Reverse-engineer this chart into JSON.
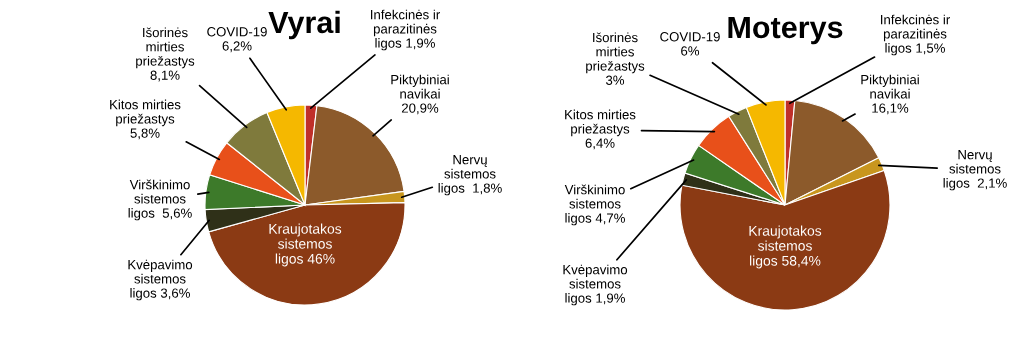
{
  "chart_data": [
    {
      "type": "pie",
      "title": "Vyrai",
      "categories": [
        "Infekcinės ir\nparazitinės\nligos 1,9%",
        "Piktybiniai\nnavikai\n20,9%",
        "Nervų\nsistemos\nligos  1,8%",
        "Kraujotakos\nsistemos\nligos 46%",
        "Kvėpavimo\nsistemos\nligos 3,6%",
        "Virškinimo\nsistemos\nligos  5,6%",
        "Kitos mirties\npriežastys\n5,8%",
        "Išorinės\nmirties\npriežastys\n8,1%",
        "COVID-19\n6,2%"
      ],
      "values": [
        1.9,
        20.9,
        1.8,
        46,
        3.6,
        5.6,
        5.8,
        8.1,
        6.2
      ],
      "colors": [
        "#c0302a",
        "#8c5a2b",
        "#c8961e",
        "#8b3a14",
        "#2f3018",
        "#3d7a2a",
        "#e8501a",
        "#7f7a3c",
        "#f5b800"
      ]
    },
    {
      "type": "pie",
      "title": "Moterys",
      "categories": [
        "Infekcinės ir\nparazitinės\nligos 1,5%",
        "Piktybiniai\nnavikai\n16,1%",
        "Nervų\nsistemos\nligos  2,1%",
        "Kraujotakos\nsistemos\nligos 58,4%",
        "Kvėpavimo\nsistemos\nligos 1,9%",
        "Virškinimo\nsistemos\nligos 4,7%",
        "Kitos mirties\npriežastys\n6,4%",
        "Išorinės\nmirties\npriežastys\n3%",
        "COVID-19\n6%"
      ],
      "values": [
        1.5,
        16.1,
        2.1,
        58.4,
        1.9,
        4.7,
        6.4,
        3,
        6
      ],
      "colors": [
        "#c0302a",
        "#8c5a2b",
        "#c8961e",
        "#8b3a14",
        "#2f3018",
        "#3d7a2a",
        "#e8501a",
        "#7f7a3c",
        "#f5b800"
      ]
    }
  ]
}
